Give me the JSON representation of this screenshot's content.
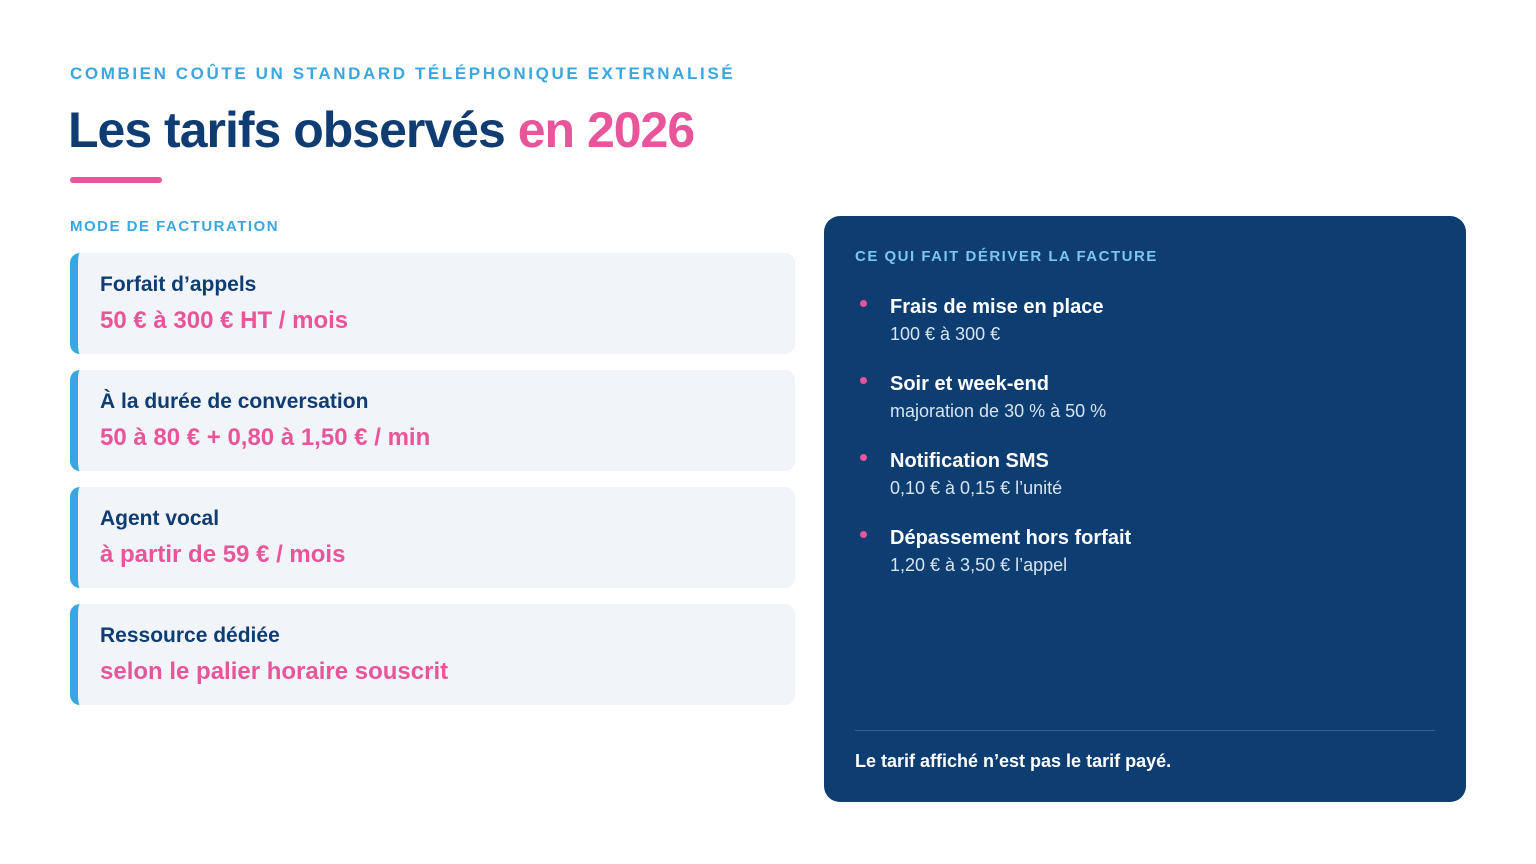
{
  "header": {
    "eyebrow": "COMBIEN COÛTE UN STANDARD TÉLÉPHONIQUE EXTERNALISÉ",
    "title_main": "Les tarifs observés",
    "title_accent": "en 2026"
  },
  "billing": {
    "label": "MODE DE FACTURATION",
    "items": [
      {
        "name": "Forfait d’appels",
        "price": "50 € à 300 € HT / mois"
      },
      {
        "name": "À la durée de conversation",
        "price": "50 à 80 € + 0,80 à 1,50 € / min"
      },
      {
        "name": "Agent vocal",
        "price": "à partir de 59 € / mois"
      },
      {
        "name": "Ressource dédiée",
        "price": "selon le palier horaire souscrit"
      }
    ]
  },
  "drivers": {
    "label": "CE QUI FAIT DÉRIVER LA FACTURE",
    "items": [
      {
        "name": "Frais de mise en place",
        "detail": "100 € à 300 €"
      },
      {
        "name": "Soir et week-end",
        "detail": "majoration de 30 % à 50 %"
      },
      {
        "name": "Notification SMS",
        "detail": "0,10 € à 0,15 € l’unité"
      },
      {
        "name": "Dépassement hors forfait",
        "detail": "1,20 € à 3,50 € l’appel"
      }
    ],
    "footnote": "Le tarif affiché n’est pas le tarif payé."
  },
  "colors": {
    "navy": "#0f3d73",
    "accent_pink": "#e8559a",
    "accent_blue": "#3aa6e0",
    "panel_bg": "#0e3d72",
    "card_bg": "#f1f4f8"
  }
}
